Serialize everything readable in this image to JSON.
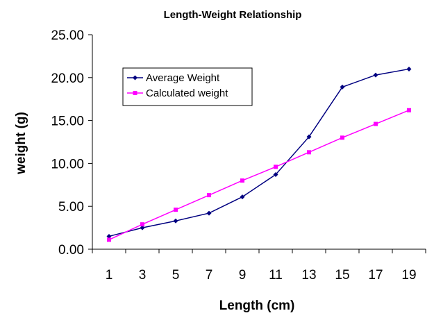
{
  "chart_data": {
    "type": "line",
    "title": "Length-Weight Relationship",
    "xlabel": "Length (cm)",
    "ylabel": "weight (g)",
    "x": [
      1,
      3,
      5,
      7,
      9,
      11,
      13,
      15,
      17,
      19
    ],
    "x_tick_labels": [
      "1",
      "3",
      "5",
      "7",
      "9",
      "11",
      "13",
      "15",
      "17",
      "19"
    ],
    "y_tick_labels": [
      "0.00",
      "5.00",
      "10.00",
      "15.00",
      "20.00",
      "25.00"
    ],
    "ylim": [
      0,
      25
    ],
    "y_ticks": [
      0,
      5,
      10,
      15,
      20,
      25
    ],
    "grid": false,
    "legend_position": "top-left",
    "series": [
      {
        "name": "Average Weight",
        "color": "#000080",
        "marker": "diamond",
        "values": [
          1.5,
          2.5,
          3.3,
          4.2,
          6.1,
          8.7,
          13.1,
          18.9,
          20.3,
          21.0
        ]
      },
      {
        "name": "Calculated weight",
        "color": "#ff00ff",
        "marker": "square",
        "values": [
          1.1,
          2.9,
          4.6,
          6.3,
          8.0,
          9.6,
          11.3,
          13.0,
          14.6,
          16.2
        ]
      }
    ]
  }
}
